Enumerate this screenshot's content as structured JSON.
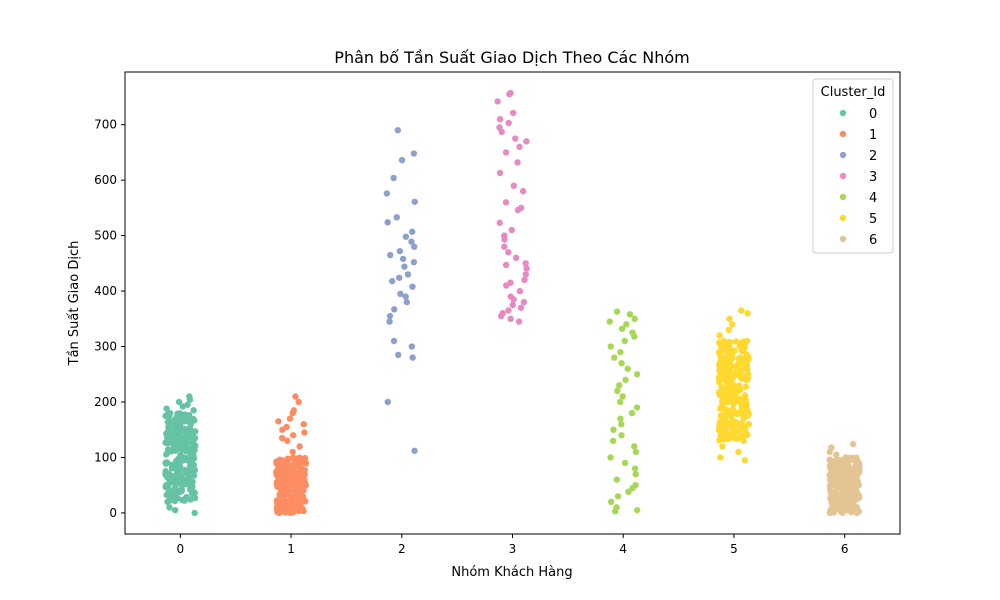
{
  "chart_data": {
    "type": "scatter",
    "subtype": "strip",
    "title": "Phân bố Tần Suất Giao Dịch Theo Các Nhóm",
    "xlabel": "Nhóm Khách Hàng",
    "ylabel": "Tần Suất Giao Dịch",
    "categories": [
      "0",
      "1",
      "2",
      "3",
      "4",
      "5",
      "6"
    ],
    "x_ticks": [
      "0",
      "1",
      "2",
      "3",
      "4",
      "5",
      "6"
    ],
    "y_ticks": [
      0,
      100,
      200,
      300,
      400,
      500,
      600,
      700
    ],
    "ylim": [
      -38,
      795
    ],
    "grid": false,
    "legend": {
      "title": "Cluster_Id",
      "placement": "top-right",
      "entries": [
        "0",
        "1",
        "2",
        "3",
        "4",
        "5",
        "6"
      ]
    },
    "series": [
      {
        "name": "0",
        "color": "#66c2a5",
        "range": [
          0,
          210
        ],
        "dense_range": [
          20,
          180
        ],
        "values": [
          210,
          204,
          200,
          195,
          192,
          188,
          185,
          180,
          175,
          170,
          160,
          150,
          140,
          130,
          120,
          110,
          100,
          90,
          80,
          70,
          60,
          50,
          40,
          30,
          20,
          10,
          5,
          0
        ]
      },
      {
        "name": "1",
        "color": "#fc8d62",
        "range": [
          0,
          210
        ],
        "dense_range": [
          0,
          100
        ],
        "values": [
          210,
          200,
          185,
          180,
          170,
          165,
          160,
          155,
          150,
          145,
          140,
          135,
          130,
          120,
          110,
          100,
          90,
          80,
          70,
          60,
          50,
          40,
          30,
          20,
          10,
          5,
          0
        ]
      },
      {
        "name": "2",
        "color": "#8da0cb",
        "range": [
          112,
          690
        ],
        "values": [
          690,
          648,
          636,
          604,
          576,
          561,
          533,
          524,
          507,
          498,
          489,
          480,
          472,
          465,
          458,
          452,
          444,
          430,
          424,
          418,
          408,
          395,
          390,
          380,
          367,
          355,
          345,
          310,
          300,
          285,
          280,
          200,
          112
        ]
      },
      {
        "name": "3",
        "color": "#e78ac3",
        "range": [
          345,
          757
        ],
        "values": [
          757,
          755,
          742,
          721,
          710,
          703,
          695,
          687,
          675,
          670,
          660,
          650,
          632,
          613,
          590,
          580,
          560,
          550,
          546,
          523,
          510,
          500,
          493,
          480,
          470,
          460,
          450,
          447,
          441,
          430,
          420,
          415,
          410,
          400,
          390,
          385,
          380,
          375,
          370,
          365,
          360,
          355,
          350,
          345
        ]
      },
      {
        "name": "4",
        "color": "#a6d854",
        "range": [
          3,
          363
        ],
        "values": [
          363,
          358,
          350,
          345,
          340,
          332,
          325,
          318,
          310,
          300,
          290,
          280,
          270,
          260,
          250,
          240,
          230,
          220,
          210,
          200,
          190,
          180,
          170,
          160,
          150,
          140,
          130,
          120,
          110,
          100,
          90,
          80,
          70,
          60,
          50,
          45,
          38,
          30,
          20,
          10,
          5,
          3
        ]
      },
      {
        "name": "5",
        "color": "#ffd92f",
        "range": [
          95,
          365
        ],
        "dense_range": [
          130,
          310
        ],
        "values": [
          365,
          360,
          350,
          340,
          330,
          320,
          310,
          300,
          290,
          280,
          270,
          260,
          250,
          240,
          230,
          220,
          210,
          200,
          190,
          180,
          170,
          160,
          150,
          140,
          130,
          120,
          110,
          100,
          95
        ]
      },
      {
        "name": "6",
        "color": "#e5c494",
        "range": [
          0,
          124
        ],
        "dense_range": [
          0,
          100
        ],
        "values": [
          124,
          118,
          110,
          105,
          100,
          95,
          90,
          80,
          70,
          60,
          50,
          40,
          30,
          20,
          10,
          5,
          0
        ]
      }
    ]
  }
}
